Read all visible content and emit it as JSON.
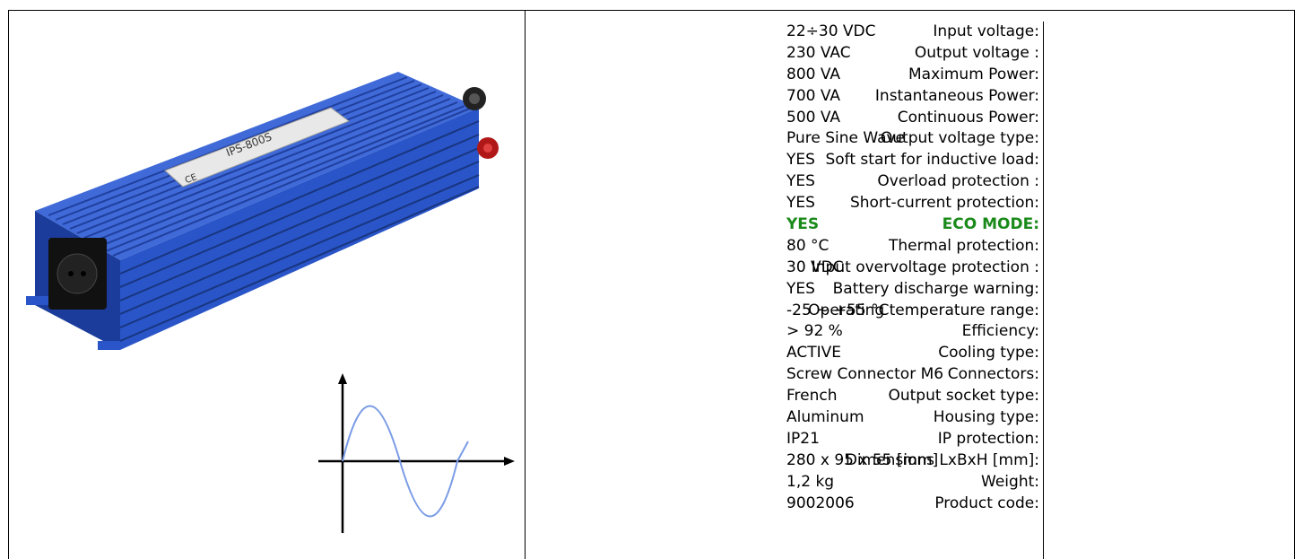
{
  "specs": [
    {
      "label": "Input voltage:",
      "value": "22÷30 VDC"
    },
    {
      "label": "Output voltage :",
      "value": "230 VAC"
    },
    {
      "label": "Maximum Power:",
      "value": "800 VA"
    },
    {
      "label": "Instantaneous Power:",
      "value": "700 VA"
    },
    {
      "label": "Continuous Power:",
      "value": "500 VA"
    },
    {
      "label": "Output voltage type:",
      "value": "Pure Sine Wave"
    },
    {
      "label": "Soft start for inductive load:",
      "value": "YES"
    },
    {
      "label": "Overload protection :",
      "value": "YES"
    },
    {
      "label": "Short-current protection:",
      "value": "YES"
    },
    {
      "label": "ECO MODE:",
      "value": "YES",
      "highlight": true
    },
    {
      "label": "Thermal protection:",
      "value": "80 °C"
    },
    {
      "label": "Input overvoltage protection :",
      "value": "30 VDC"
    },
    {
      "label": "Battery discharge warning:",
      "value": "YES"
    },
    {
      "label": "Operating temperature range:",
      "value": "-25 ~ +55 °C"
    },
    {
      "label": "Efficiency:",
      "value": "> 92 %"
    },
    {
      "label": "Cooling type:",
      "value": "ACTIVE"
    },
    {
      "label": "Connectors:",
      "value": "Screw Connector M6"
    },
    {
      "label": "Output socket type:",
      "value": "French"
    },
    {
      "label": "Housing type:",
      "value": "Aluminum"
    },
    {
      "label": "IP protection:",
      "value": "IP21"
    },
    {
      "label": "Dimensions LxBxH [mm]:",
      "value": "280 x 95 x 55 [mm]"
    },
    {
      "label": "Weight:",
      "value": "1,2 kg"
    },
    {
      "label": "Product code:",
      "value": "9002006"
    }
  ],
  "product_label": "IPS-800S",
  "ce_mark": "CE",
  "colors": {
    "housing": "#2a55c8",
    "highlight": "#1a8a1a",
    "wave": "#7a9be6"
  }
}
